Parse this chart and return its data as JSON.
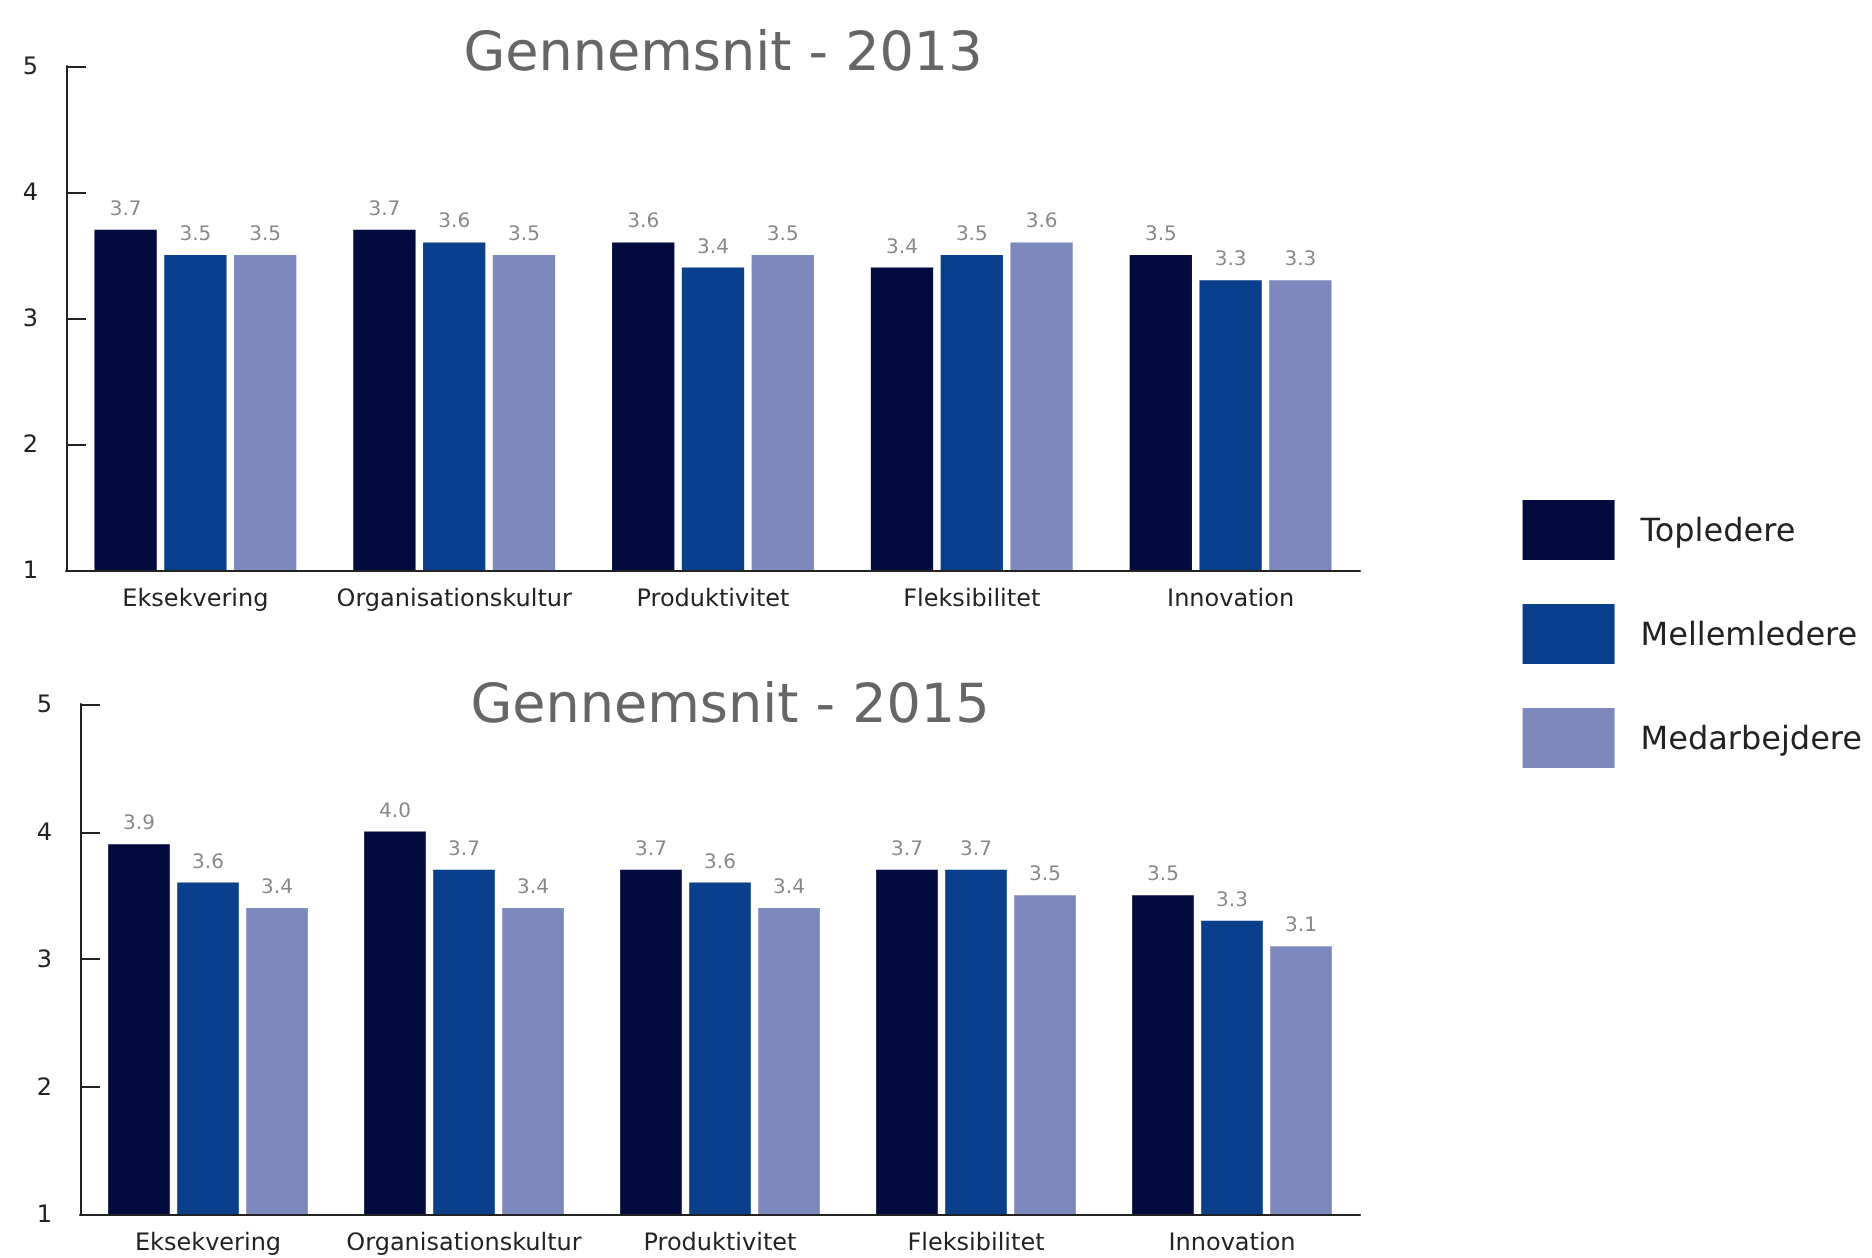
{
  "chart_data": [
    {
      "type": "bar",
      "title": "Gennemsnit - 2013",
      "categories": [
        "Eksekvering",
        "Organisationskultur",
        "Produktivitet",
        "Fleksibilitet",
        "Innovation"
      ],
      "ylim": [
        1,
        5
      ],
      "yticks": [
        1,
        2,
        3,
        4,
        5
      ],
      "grid": false,
      "series": [
        {
          "color": "#020a3e",
          "values": [
            3.7,
            3.7,
            3.6,
            3.4,
            3.5
          ],
          "value_labels": [
            "3.7",
            "3.7",
            "3.6",
            "3.4",
            "3.5"
          ]
        },
        {
          "color": "#0a3f8c",
          "values": [
            3.5,
            3.6,
            3.4,
            3.5,
            3.3
          ],
          "value_labels": [
            "3.5",
            "3.6",
            "3.4",
            "3.5",
            "3.3"
          ]
        },
        {
          "color": "#7d89bd",
          "values": [
            3.5,
            3.5,
            3.5,
            3.6,
            3.3
          ],
          "value_labels": [
            "3.5",
            "3.5",
            "3.5",
            "3.6",
            "3.3"
          ]
        }
      ]
    },
    {
      "type": "bar",
      "title": "Gennemsnit - 2015",
      "categories": [
        "Eksekvering",
        "Organisationskultur",
        "Produktivitet",
        "Fleksibilitet",
        "Innovation"
      ],
      "ylim": [
        1,
        5
      ],
      "yticks": [
        1,
        2,
        3,
        4,
        5
      ],
      "grid": false,
      "legend": "right",
      "series": [
        {
          "name": "Topledere",
          "color": "#020a3e",
          "values": [
            3.9,
            4.0,
            3.7,
            3.7,
            3.5
          ],
          "value_labels": [
            "3.9",
            "4.0",
            "3.7",
            "3.7",
            "3.5"
          ]
        },
        {
          "name": "Mellemledere",
          "color": "#0a3f8c",
          "values": [
            3.6,
            3.7,
            3.6,
            3.7,
            3.3
          ],
          "value_labels": [
            "3.6",
            "3.7",
            "3.6",
            "3.7",
            "3.3"
          ]
        },
        {
          "name": "Medarbejdere",
          "color": "#7d89bd",
          "values": [
            3.4,
            3.4,
            3.4,
            3.5,
            3.1
          ],
          "value_labels": [
            "3.4",
            "3.4",
            "3.4",
            "3.5",
            "3.1"
          ]
        }
      ]
    }
  ]
}
